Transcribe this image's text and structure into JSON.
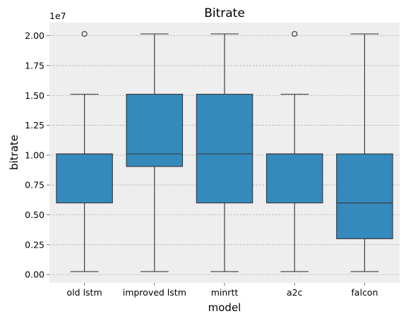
{
  "chart_data": {
    "type": "box",
    "title": "Bitrate",
    "xlabel": "model",
    "ylabel": "bitrate",
    "y_offset_label": "1e7",
    "y_scale": 10000000,
    "ylim": [
      -700000,
      21100000
    ],
    "yticks": [
      0,
      2500000,
      5000000,
      7500000,
      10000000,
      12500000,
      15000000,
      17500000,
      20000000
    ],
    "ytick_labels": [
      "0.00",
      "0.25",
      "0.50",
      "0.75",
      "1.00",
      "1.25",
      "1.50",
      "1.75",
      "2.00"
    ],
    "grid": true,
    "colors": {
      "box": "#348abd",
      "line": "#3d3d3d",
      "background": "#eeeeee",
      "grid": "#b0b0b0"
    },
    "categories": [
      "old lstm",
      "improved lstm",
      "minrtt",
      "a2c",
      "falcon"
    ],
    "boxes": [
      {
        "category": "old lstm",
        "whisker_low": 250000,
        "q1": 6000000,
        "median": 10100000,
        "q3": 10100000,
        "whisker_high": 15100000,
        "outliers": [
          20150000
        ]
      },
      {
        "category": "improved lstm",
        "whisker_low": 250000,
        "q1": 9050000,
        "median": 10100000,
        "q3": 15100000,
        "whisker_high": 20150000,
        "outliers": []
      },
      {
        "category": "minrtt",
        "whisker_low": 250000,
        "q1": 6000000,
        "median": 10100000,
        "q3": 15100000,
        "whisker_high": 20150000,
        "outliers": []
      },
      {
        "category": "a2c",
        "whisker_low": 250000,
        "q1": 6000000,
        "median": 10100000,
        "q3": 10100000,
        "whisker_high": 15100000,
        "outliers": [
          20150000
        ]
      },
      {
        "category": "falcon",
        "whisker_low": 250000,
        "q1": 3000000,
        "median": 6000000,
        "q3": 10100000,
        "whisker_high": 20150000,
        "outliers": []
      }
    ]
  }
}
